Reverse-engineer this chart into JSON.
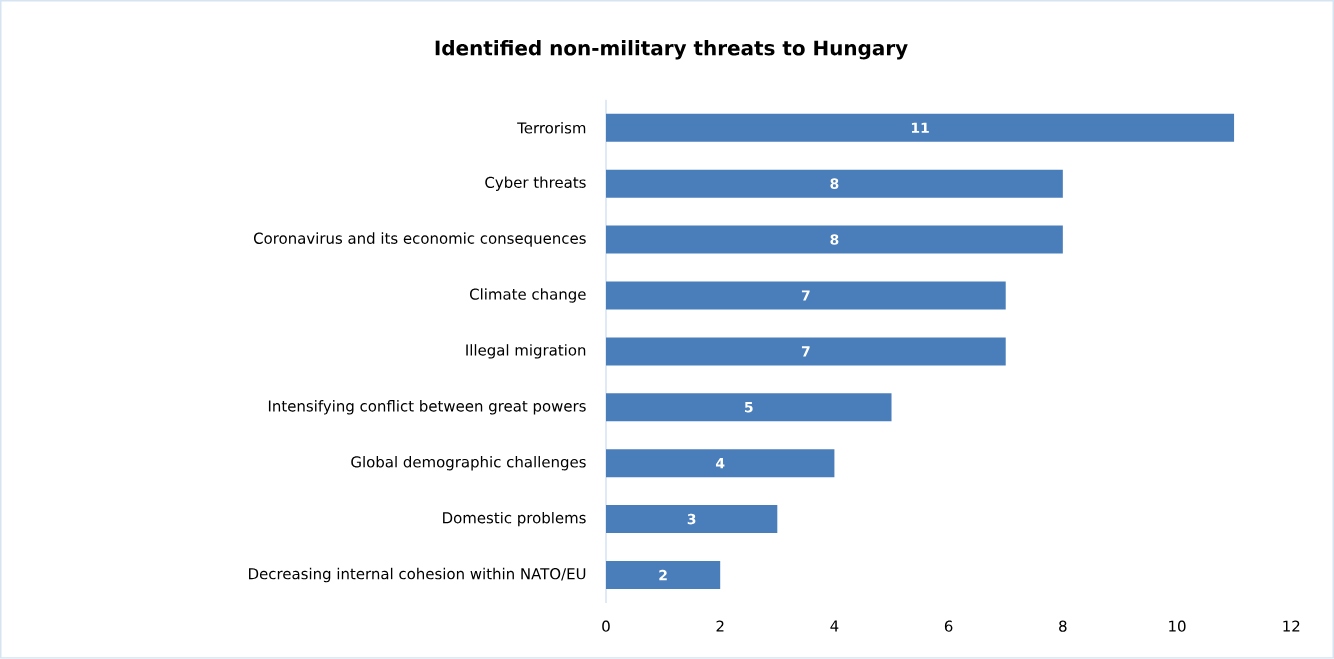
{
  "chart_data": {
    "type": "bar",
    "orientation": "horizontal",
    "title": "Identified non-military threats to Hungary",
    "categories": [
      "Terrorism",
      "Cyber threats",
      "Coronavirus and its economic consequences",
      "Climate change",
      "Illegal migration",
      "Intensifying conflict between great powers",
      "Global demographic challenges",
      "Domestic problems",
      "Decreasing internal cohesion within NATO/EU"
    ],
    "values": [
      11,
      8,
      8,
      7,
      7,
      5,
      4,
      3,
      2
    ],
    "color": "#4a7ebb",
    "xlim": [
      0,
      12
    ],
    "xticks": [
      0,
      2,
      4,
      6,
      8,
      10,
      12
    ],
    "data_labels": true,
    "grid": false
  }
}
